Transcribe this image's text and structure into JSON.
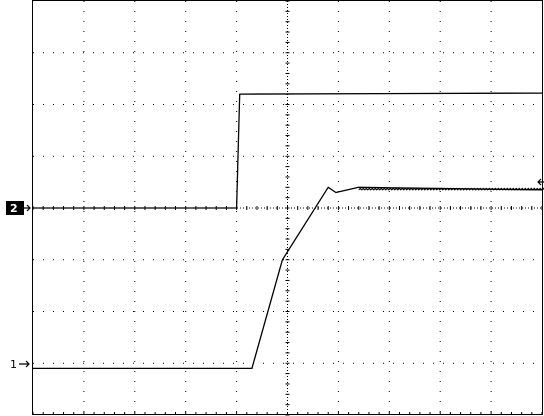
{
  "chart_data": {
    "type": "line",
    "grid": true,
    "xlim": [
      0,
      10
    ],
    "ylim": [
      0,
      8
    ],
    "x_divisions": 10,
    "y_divisions": 8,
    "series": [
      {
        "marker": "1",
        "color": "#000000",
        "points": [
          [
            0,
            0.9
          ],
          [
            4.3,
            0.9
          ],
          [
            4.9,
            3.0
          ],
          [
            5.8,
            4.4
          ],
          [
            5.95,
            4.3
          ],
          [
            6.4,
            4.4
          ],
          [
            10,
            4.35
          ]
        ]
      },
      {
        "marker": "2",
        "color": "#000000",
        "points": [
          [
            0,
            4.0
          ],
          [
            4.0,
            4.0
          ],
          [
            4.06,
            6.2
          ],
          [
            10,
            6.22
          ]
        ]
      }
    ]
  },
  "markers": {
    "ch1": "1",
    "ch2": "2"
  }
}
